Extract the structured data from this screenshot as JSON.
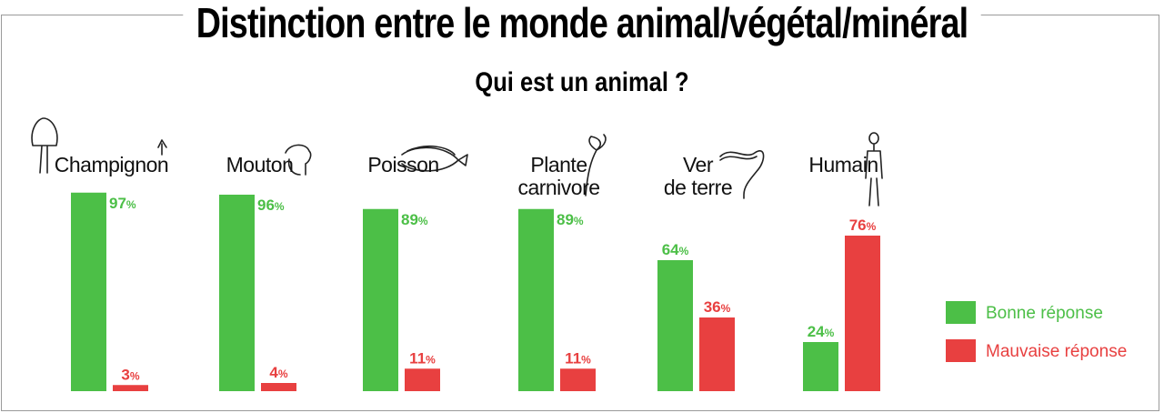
{
  "header": {
    "title": "Distinction entre le monde animal/végétal/minéral",
    "subtitle": "Qui est un animal ?"
  },
  "colors": {
    "good": "#4cbf47",
    "bad": "#e84040"
  },
  "chart_data": {
    "type": "bar",
    "title": "Distinction entre le monde animal/végétal/minéral",
    "subtitle": "Qui est un animal ?",
    "categories": [
      {
        "lines": [
          "Champignon"
        ],
        "icon": "mushroom-icon"
      },
      {
        "lines": [
          "Mouton"
        ],
        "icon": "sheep-icon"
      },
      {
        "lines": [
          "Poisson"
        ],
        "icon": "fish-icon"
      },
      {
        "lines": [
          "Plante",
          "carnivore"
        ],
        "icon": "carnivorous-plant-icon"
      },
      {
        "lines": [
          "Ver",
          "de terre"
        ],
        "icon": "worm-icon"
      },
      {
        "lines": [
          "Humain"
        ],
        "icon": "human-icon"
      }
    ],
    "series": [
      {
        "name": "Bonne réponse",
        "color": "#4cbf47",
        "values": [
          97,
          96,
          89,
          89,
          64,
          24
        ]
      },
      {
        "name": "Mauvaise réponse",
        "color": "#e84040",
        "values": [
          3,
          4,
          11,
          11,
          36,
          76
        ]
      }
    ],
    "unit": "%",
    "ylim": [
      0,
      100
    ],
    "legend_position": "right"
  }
}
